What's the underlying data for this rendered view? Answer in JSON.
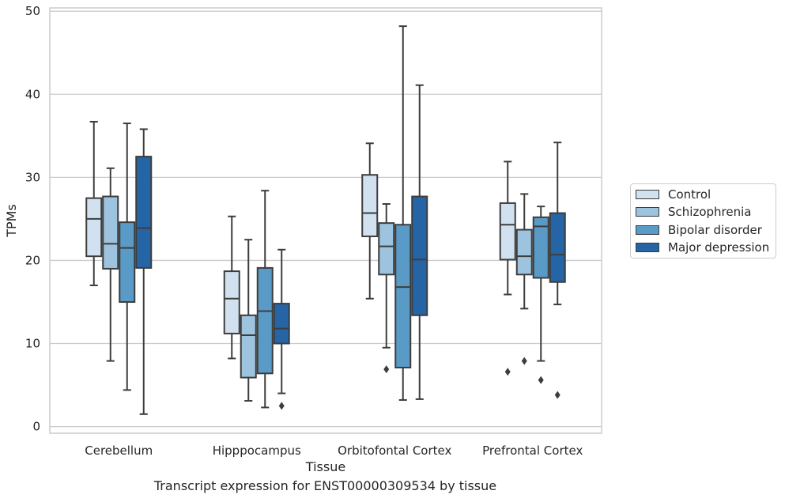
{
  "chart_data": {
    "type": "box",
    "title": "",
    "caption": "Transcript expression for ENST00000309534 by tissue",
    "xlabel": "Tissue",
    "ylabel": "TPMs",
    "ylim": [
      -0.8,
      50.4
    ],
    "yticks": [
      0,
      10,
      20,
      30,
      40,
      50
    ],
    "grid": "horizontal",
    "legend_position": "right",
    "categories": [
      "Cerebellum",
      "Hipppocampus",
      "Orbitofontal Cortex",
      "Prefrontal Cortex"
    ],
    "series": [
      {
        "name": "Control",
        "color": "#d1e1f0",
        "boxes": [
          {
            "whisker_low": 17.0,
            "q1": 20.5,
            "median": 25.0,
            "q3": 27.5,
            "whisker_high": 36.7,
            "outliers": []
          },
          {
            "whisker_low": 8.2,
            "q1": 11.2,
            "median": 15.4,
            "q3": 18.7,
            "whisker_high": 25.3,
            "outliers": []
          },
          {
            "whisker_low": 15.4,
            "q1": 22.9,
            "median": 25.7,
            "q3": 30.3,
            "whisker_high": 34.1,
            "outliers": []
          },
          {
            "whisker_low": 15.9,
            "q1": 20.1,
            "median": 24.3,
            "q3": 26.9,
            "whisker_high": 31.9,
            "outliers": [
              6.6
            ]
          }
        ]
      },
      {
        "name": "Schizophrenia",
        "color": "#9dc3de",
        "boxes": [
          {
            "whisker_low": 7.9,
            "q1": 19.0,
            "median": 22.0,
            "q3": 27.7,
            "whisker_high": 31.1,
            "outliers": []
          },
          {
            "whisker_low": 3.1,
            "q1": 5.9,
            "median": 11.0,
            "q3": 13.4,
            "whisker_high": 22.5,
            "outliers": []
          },
          {
            "whisker_low": 9.5,
            "q1": 18.3,
            "median": 21.7,
            "q3": 24.5,
            "whisker_high": 26.8,
            "outliers": [
              6.9
            ]
          },
          {
            "whisker_low": 14.2,
            "q1": 18.3,
            "median": 20.5,
            "q3": 23.7,
            "whisker_high": 28.0,
            "outliers": [
              7.9
            ]
          }
        ]
      },
      {
        "name": "Bipolar disorder",
        "color": "#5a9ac6",
        "boxes": [
          {
            "whisker_low": 4.4,
            "q1": 15.0,
            "median": 21.5,
            "q3": 24.6,
            "whisker_high": 36.5,
            "outliers": []
          },
          {
            "whisker_low": 2.3,
            "q1": 6.4,
            "median": 13.9,
            "q3": 19.1,
            "whisker_high": 28.4,
            "outliers": []
          },
          {
            "whisker_low": 3.2,
            "q1": 7.1,
            "median": 16.8,
            "q3": 24.3,
            "whisker_high": 48.2,
            "outliers": []
          },
          {
            "whisker_low": 7.9,
            "q1": 17.9,
            "median": 24.1,
            "q3": 25.2,
            "whisker_high": 26.5,
            "outliers": [
              5.6
            ]
          }
        ]
      },
      {
        "name": "Major depression",
        "color": "#2565a6",
        "boxes": [
          {
            "whisker_low": 1.5,
            "q1": 19.1,
            "median": 23.9,
            "q3": 32.5,
            "whisker_high": 35.8,
            "outliers": []
          },
          {
            "whisker_low": 4.0,
            "q1": 10.0,
            "median": 11.8,
            "q3": 14.8,
            "whisker_high": 21.3,
            "outliers": [
              2.5
            ]
          },
          {
            "whisker_low": 3.3,
            "q1": 13.4,
            "median": 20.1,
            "q3": 27.7,
            "whisker_high": 41.1,
            "outliers": []
          },
          {
            "whisker_low": 14.7,
            "q1": 17.4,
            "median": 20.7,
            "q3": 25.7,
            "whisker_high": 34.2,
            "outliers": [
              3.8
            ]
          }
        ]
      }
    ]
  }
}
